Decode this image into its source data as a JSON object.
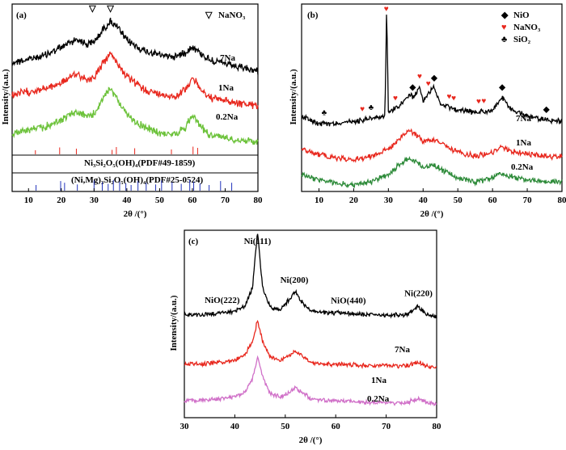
{
  "colors": {
    "black": "#000000",
    "red": "#e8281e",
    "green": "#6cc23a",
    "dkgreen": "#2e8b3a",
    "magenta": "#d070c8",
    "blue": "#2233bb"
  },
  "chart_data": [
    {
      "panel": "(a)",
      "type": "line",
      "xlabel": "2θ /(°)",
      "ylabel": "Intensity/(a.u.)",
      "xlim": [
        5,
        80
      ],
      "xticks": [
        10,
        20,
        30,
        40,
        50,
        60,
        70,
        80
      ],
      "legend": [
        {
          "symbol": "▽",
          "name": "NaNO₃"
        }
      ],
      "series": [
        {
          "name": "7Na",
          "color": "black",
          "x": [
            5,
            10,
            15,
            20,
            22,
            25,
            28,
            30,
            33,
            35,
            37,
            40,
            45,
            50,
            55,
            58,
            60,
            62,
            65,
            70,
            75,
            80
          ],
          "y": [
            62,
            64,
            67,
            72,
            75,
            78,
            74,
            76,
            85,
            90,
            86,
            77,
            70,
            67,
            66,
            69,
            73,
            69,
            64,
            61,
            58,
            56
          ]
        },
        {
          "name": "1Na",
          "color": "red",
          "x": [
            5,
            10,
            15,
            20,
            22,
            25,
            28,
            30,
            33,
            35,
            37,
            40,
            45,
            50,
            55,
            58,
            60,
            62,
            65,
            70,
            75,
            80
          ],
          "y": [
            40,
            42,
            44,
            48,
            51,
            54,
            50,
            52,
            62,
            68,
            62,
            52,
            44,
            40,
            39,
            44,
            52,
            45,
            38,
            36,
            34,
            32
          ]
        },
        {
          "name": "0.2Na",
          "color": "green",
          "x": [
            5,
            10,
            15,
            20,
            22,
            25,
            28,
            30,
            33,
            35,
            37,
            40,
            45,
            50,
            55,
            58,
            60,
            62,
            65,
            70,
            75,
            80
          ],
          "y": [
            14,
            16,
            18,
            23,
            26,
            28,
            25,
            27,
            38,
            44,
            38,
            26,
            18,
            14,
            13,
            18,
            27,
            20,
            13,
            11,
            9,
            8
          ]
        }
      ],
      "peak_markers": [
        {
          "symbol": "▽",
          "x": 29.5
        },
        {
          "symbol": "▽",
          "x": 35
        }
      ],
      "references": [
        {
          "label": "Ni₃Si₂O₅(OH)₄(PDF#49-1859)",
          "color": "red",
          "x": [
            12.1,
            19.5,
            24.6,
            35.5,
            36.8,
            42.4,
            53.6,
            60.2,
            61.6
          ]
        },
        {
          "label": "(Ni,Mg)₃Si₂O₅(OH)₄(PDF#25-0524)",
          "color": "blue",
          "x": [
            12.3,
            19.8,
            21.0,
            24.9,
            30.0,
            32.5,
            34.3,
            35.9,
            37.8,
            39.7,
            41.3,
            43.4,
            45.9,
            48.8,
            50.6,
            53.8,
            56.6,
            59.2,
            60.4,
            62.3,
            65.1,
            68.6,
            72.0
          ]
        }
      ]
    },
    {
      "panel": "(b)",
      "type": "line",
      "xlabel": "2θ /(°)",
      "ylabel": "Intensity/(a.u.)",
      "xlim": [
        5,
        80
      ],
      "xticks": [
        10,
        20,
        30,
        40,
        50,
        60,
        70,
        80
      ],
      "legend": [
        {
          "symbol": "◆",
          "name": "NiO",
          "color": "black"
        },
        {
          "symbol": "♥",
          "name": "NaNO₃",
          "color": "red"
        },
        {
          "symbol": "♣",
          "name": "SiO₂",
          "color": "black"
        }
      ],
      "series": [
        {
          "name": "7Na",
          "color": "black",
          "x": [
            5,
            10,
            15,
            20,
            25,
            29,
            29.5,
            30,
            33,
            36.5,
            37,
            39,
            40,
            43,
            45,
            50,
            55,
            60,
            62.8,
            65,
            70,
            75,
            80
          ],
          "y": [
            40,
            36,
            36,
            37,
            39,
            40,
            100,
            42,
            45,
            52,
            50,
            56,
            48,
            56,
            47,
            43,
            42,
            43,
            50,
            44,
            40,
            38,
            37
          ]
        },
        {
          "name": "1Na",
          "color": "red",
          "x": [
            5,
            10,
            15,
            20,
            25,
            30,
            33,
            36,
            38,
            40,
            43,
            46,
            50,
            55,
            60,
            62,
            65,
            70,
            75,
            80
          ],
          "y": [
            22,
            19,
            17,
            16,
            18,
            22,
            27,
            32,
            30,
            26,
            27,
            24,
            20,
            18,
            20,
            23,
            21,
            19,
            18,
            18
          ]
        },
        {
          "name": "0.2Na",
          "color": "dkgreen",
          "x": [
            5,
            10,
            15,
            20,
            25,
            30,
            33,
            36,
            38,
            40,
            43,
            46,
            50,
            55,
            60,
            62,
            65,
            70,
            75,
            80
          ],
          "y": [
            8,
            5,
            3,
            2,
            4,
            8,
            13,
            17,
            15,
            12,
            13,
            10,
            6,
            4,
            6,
            9,
            7,
            5,
            4,
            4
          ]
        }
      ],
      "markers": [
        {
          "symbol": "♣",
          "x": 11.5,
          "color": "black"
        },
        {
          "symbol": "♥",
          "x": 22.5,
          "color": "red"
        },
        {
          "symbol": "♣",
          "x": 25,
          "color": "black"
        },
        {
          "symbol": "♥",
          "x": 29.4,
          "color": "red"
        },
        {
          "symbol": "♥",
          "x": 32,
          "color": "red"
        },
        {
          "symbol": "◆",
          "x": 37,
          "color": "black"
        },
        {
          "symbol": "♥",
          "x": 39,
          "color": "red"
        },
        {
          "symbol": "♥",
          "x": 41.5,
          "color": "red"
        },
        {
          "symbol": "◆",
          "x": 43.2,
          "color": "black"
        },
        {
          "symbol": "♥",
          "x": 47.5,
          "color": "red"
        },
        {
          "symbol": "♥",
          "x": 48.8,
          "color": "red"
        },
        {
          "symbol": "♥",
          "x": 56,
          "color": "red"
        },
        {
          "symbol": "♥",
          "x": 57.5,
          "color": "red"
        },
        {
          "symbol": "◆",
          "x": 62.8,
          "color": "black"
        },
        {
          "symbol": "◆",
          "x": 75.5,
          "color": "black"
        }
      ]
    },
    {
      "panel": "(c)",
      "type": "line",
      "xlabel": "2θ /(°)",
      "ylabel": "Intensity/(a.u.)",
      "xlim": [
        30,
        80
      ],
      "xticks": [
        30,
        40,
        50,
        60,
        70,
        80
      ],
      "series": [
        {
          "name": "7Na",
          "color": "black",
          "x": [
            30,
            34,
            37,
            40,
            42,
            43.5,
            44.5,
            45.5,
            47,
            49,
            51,
            52,
            53,
            55,
            58,
            62,
            66,
            70,
            74,
            76.4,
            78,
            80
          ],
          "y": [
            55,
            55,
            56,
            57,
            60,
            70,
            100,
            70,
            59,
            58,
            64,
            68,
            63,
            57,
            56,
            56,
            55,
            55,
            55,
            60,
            55,
            54
          ]
        },
        {
          "name": "1Na",
          "color": "red",
          "x": [
            30,
            34,
            37,
            40,
            42,
            43.5,
            44.5,
            45.5,
            47,
            49,
            51,
            52,
            53,
            55,
            58,
            62,
            66,
            70,
            74,
            76.4,
            78,
            80
          ],
          "y": [
            28,
            28,
            29,
            30,
            33,
            40,
            52,
            41,
            32,
            30,
            33,
            35,
            33,
            29,
            28,
            28,
            27,
            27,
            27,
            29,
            27,
            26
          ]
        },
        {
          "name": "0.2Na",
          "color": "magenta",
          "x": [
            30,
            34,
            37,
            40,
            42,
            43.5,
            44.5,
            45.5,
            47,
            49,
            51,
            52,
            53,
            55,
            58,
            62,
            66,
            70,
            74,
            76.4,
            78,
            80
          ],
          "y": [
            8,
            8,
            9,
            10,
            13,
            20,
            32,
            21,
            12,
            10,
            13,
            15,
            13,
            9,
            8,
            8,
            7,
            7,
            7,
            9,
            7,
            6
          ]
        }
      ],
      "annotations": [
        {
          "text": "Ni(111)",
          "x": 44.5
        },
        {
          "text": "NiO(222)",
          "x": 37.5
        },
        {
          "text": "Ni(200)",
          "x": 51.8
        },
        {
          "text": "NiO(440)",
          "x": 62.5
        },
        {
          "text": "Ni(220)",
          "x": 76.4
        }
      ]
    }
  ]
}
